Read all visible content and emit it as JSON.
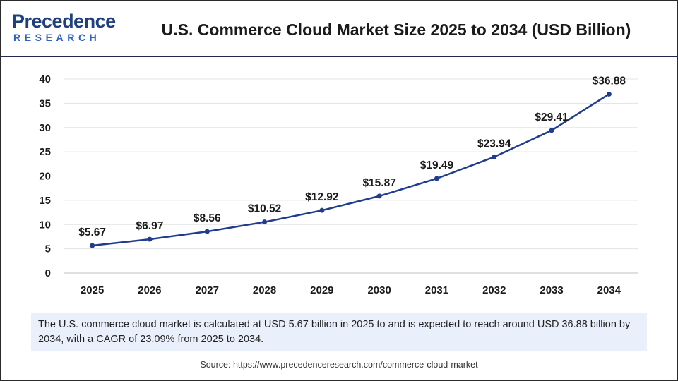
{
  "header": {
    "logo_top": "Precedence",
    "logo_bottom": "RESEARCH",
    "title": "U.S. Commerce Cloud Market Size 2025 to 2034 (USD Billion)"
  },
  "colors": {
    "line": "#1f3c8f",
    "marker": "#1f3c8f",
    "logo_dark": "#1f3f7f",
    "logo_light": "#2f62c8",
    "description_bg": "#e9f0fb"
  },
  "chart_data": {
    "type": "line",
    "categories": [
      "2025",
      "2026",
      "2027",
      "2028",
      "2029",
      "2030",
      "2031",
      "2032",
      "2033",
      "2034"
    ],
    "series": [
      {
        "values": [
          5.67,
          6.97,
          8.56,
          10.52,
          12.92,
          15.87,
          19.49,
          23.94,
          29.41,
          36.88
        ],
        "labels": [
          "$5.67",
          "$6.97",
          "$8.56",
          "$10.52",
          "$12.92",
          "$15.87",
          "$19.49",
          "$23.94",
          "$29.41",
          "$36.88"
        ]
      }
    ],
    "yticks": [
      "0",
      "5",
      "10",
      "15",
      "20",
      "25",
      "30",
      "35",
      "40"
    ],
    "ylim": [
      0,
      40
    ],
    "grid": true,
    "legend": "none"
  },
  "description": "The U.S. commerce cloud market is calculated at USD 5.67 billion in 2025 to and is expected to reach around USD 36.88 billion by 2034, with a CAGR of 23.09% from 2025 to 2034.",
  "source": "Source: https://www.precedenceresearch.com/commerce-cloud-market"
}
